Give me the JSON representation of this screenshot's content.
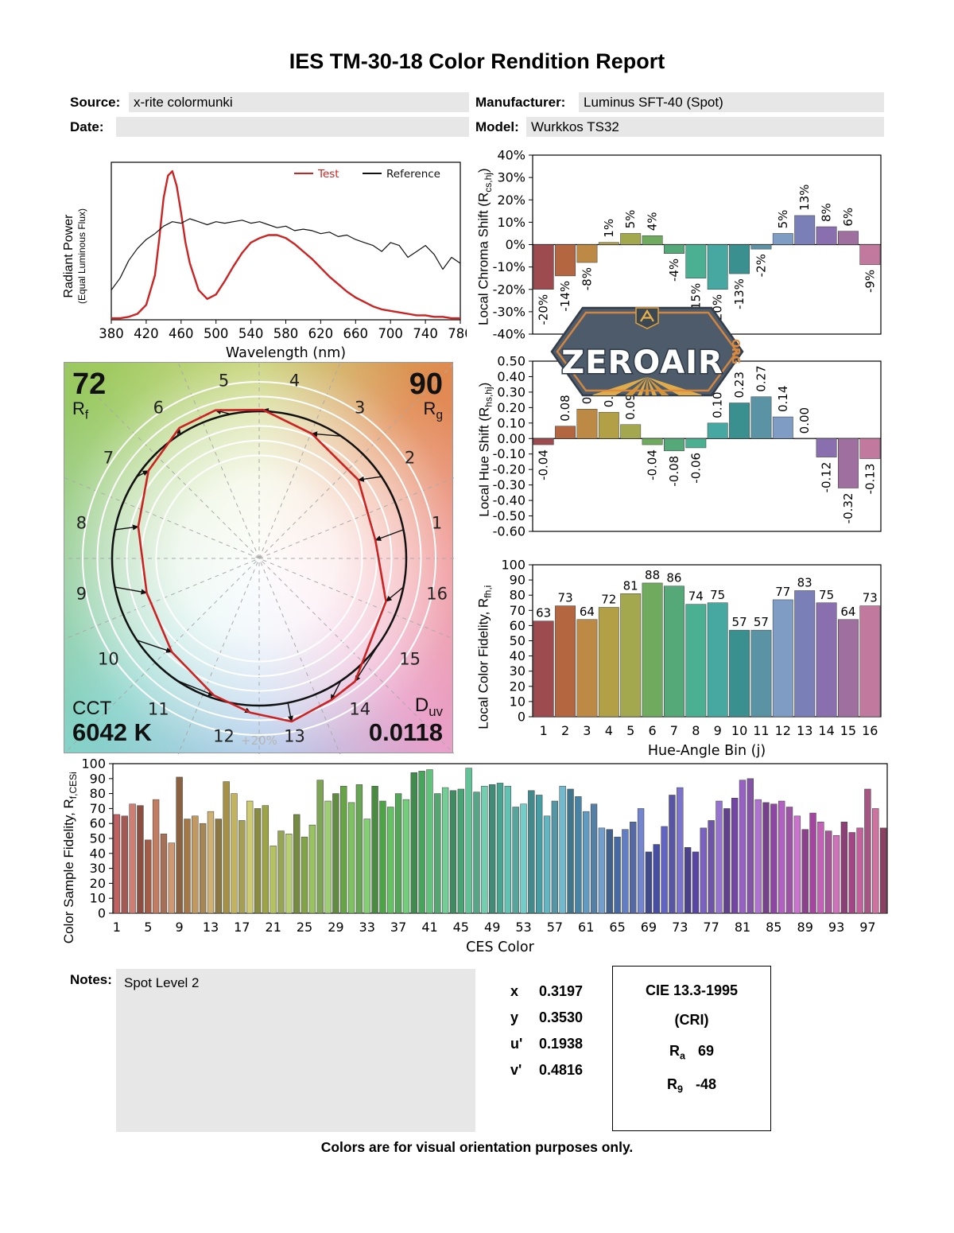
{
  "title": "IES TM-30-18 Color Rendition Report",
  "header": {
    "source_label": "Source:",
    "source_value": "x-rite colormunki",
    "manufacturer_label": "Manufacturer:",
    "manufacturer_value": "Luminus SFT-40 (Spot)",
    "date_label": "Date:",
    "date_value": "",
    "model_label": "Model:",
    "model_value": "Wurkkos TS32"
  },
  "watermark": {
    "text": "ZEROAIR",
    "suffix": "ORG",
    "body_color": "#4e5b6a",
    "accent_color": "#e08a3c",
    "ray_color": "#e8b14a"
  },
  "notes": {
    "label": "Notes:",
    "value": "Spot Level 2"
  },
  "chromaticity": {
    "rows": [
      {
        "label": "x",
        "value": "0.3197"
      },
      {
        "label": "y",
        "value": "0.3530"
      },
      {
        "label": "u'",
        "value": "0.1938"
      },
      {
        "label": "v'",
        "value": "0.4816"
      }
    ]
  },
  "cie": {
    "title": "CIE 13.3-1995",
    "subtitle": "(CRI)",
    "ra_label": "R",
    "ra_sub": "a",
    "ra_value": "69",
    "r9_label": "R",
    "r9_sub": "9",
    "r9_value": "-48"
  },
  "footer": "Colors are for visual orientation purposes only.",
  "bin_colors": [
    "#9e4b50",
    "#b3663f",
    "#bc8a45",
    "#b2a046",
    "#a3a84e",
    "#6faa5e",
    "#55a878",
    "#4bb092",
    "#46a8a0",
    "#3a8f8f",
    "#5a93a3",
    "#7f9cc4",
    "#7b7fb8",
    "#8a6fae",
    "#9f6f9f",
    "#c17a9e"
  ],
  "chart_data": [
    {
      "id": "spd",
      "type": "line",
      "xlabel": "Wavelength (nm)",
      "ylabel": "Radiant Power",
      "ylabel2": "(Equal Luminous Flux)",
      "xlim": [
        380,
        780
      ],
      "xticks": [
        380,
        420,
        460,
        500,
        540,
        580,
        620,
        660,
        700,
        740,
        780
      ],
      "legend": [
        {
          "label": "Test",
          "color": "#cc2222",
          "text_color": "#cc2222"
        },
        {
          "label": "Reference",
          "color": "#111111",
          "text_color": "#111111"
        }
      ],
      "series": [
        {
          "name": "Test",
          "color": "#cc2222",
          "width": 2.4,
          "x": [
            380,
            390,
            400,
            410,
            420,
            430,
            435,
            440,
            445,
            450,
            455,
            460,
            465,
            470,
            480,
            490,
            500,
            510,
            520,
            530,
            540,
            550,
            560,
            570,
            580,
            590,
            600,
            610,
            620,
            630,
            640,
            650,
            660,
            670,
            680,
            690,
            700,
            710,
            720,
            730,
            740,
            750,
            760,
            770,
            780
          ],
          "y": [
            0.01,
            0.01,
            0.02,
            0.04,
            0.1,
            0.3,
            0.55,
            0.82,
            0.97,
            1.0,
            0.9,
            0.72,
            0.52,
            0.38,
            0.2,
            0.14,
            0.17,
            0.26,
            0.36,
            0.45,
            0.52,
            0.55,
            0.57,
            0.57,
            0.55,
            0.51,
            0.46,
            0.41,
            0.35,
            0.29,
            0.24,
            0.19,
            0.15,
            0.12,
            0.09,
            0.07,
            0.06,
            0.05,
            0.04,
            0.03,
            0.03,
            0.02,
            0.02,
            0.01,
            0.01
          ]
        },
        {
          "name": "Reference",
          "color": "#111111",
          "width": 1.2,
          "x": [
            380,
            390,
            400,
            410,
            420,
            430,
            440,
            450,
            460,
            470,
            480,
            490,
            500,
            510,
            520,
            530,
            540,
            550,
            560,
            570,
            580,
            590,
            600,
            610,
            620,
            630,
            640,
            650,
            660,
            670,
            680,
            690,
            700,
            710,
            720,
            730,
            740,
            750,
            760,
            770,
            780
          ],
          "y": [
            0.2,
            0.28,
            0.4,
            0.48,
            0.54,
            0.58,
            0.63,
            0.66,
            0.65,
            0.68,
            0.66,
            0.64,
            0.66,
            0.65,
            0.66,
            0.67,
            0.65,
            0.66,
            0.64,
            0.62,
            0.63,
            0.6,
            0.61,
            0.6,
            0.58,
            0.59,
            0.56,
            0.57,
            0.54,
            0.52,
            0.5,
            0.46,
            0.52,
            0.5,
            0.42,
            0.46,
            0.5,
            0.44,
            0.34,
            0.42,
            0.38
          ]
        }
      ]
    },
    {
      "id": "local_chroma_shift",
      "type": "bar",
      "ylabel_pre": "Local Chroma Shift (R",
      "ylabel_sub": "cs,hj",
      "ylabel_post": ")",
      "ylim": [
        -40,
        40
      ],
      "ytick_step": 10,
      "categories": [
        1,
        2,
        3,
        4,
        5,
        6,
        7,
        8,
        9,
        10,
        11,
        12,
        13,
        14,
        15,
        16
      ],
      "values": [
        -20,
        -14,
        -8,
        1,
        5,
        4,
        -4,
        -15,
        -20,
        -13,
        -2,
        5,
        13,
        8,
        6,
        -9
      ],
      "bar_labels": [
        "-20%",
        "-14%",
        "-8%",
        "1%",
        "5%",
        "4%",
        "-4%",
        "-15%",
        "-20%",
        "-13%",
        "-2%",
        "5%",
        "13%",
        "8%",
        "6%",
        "-9%"
      ]
    },
    {
      "id": "local_hue_shift",
      "type": "bar",
      "ylabel_pre": "Local Hue Shift (R",
      "ylabel_sub": "hs,hj",
      "ylabel_post": ")",
      "ylim": [
        -0.6,
        0.5
      ],
      "ytick_step": 0.1,
      "categories": [
        1,
        2,
        3,
        4,
        5,
        6,
        7,
        8,
        9,
        10,
        11,
        12,
        13,
        14,
        15,
        16
      ],
      "values": [
        -0.04,
        0.08,
        0.19,
        0.17,
        0.09,
        -0.04,
        -0.08,
        -0.06,
        0.1,
        0.23,
        0.27,
        0.14,
        0.0,
        -0.12,
        -0.32,
        -0.13
      ],
      "bar_labels": [
        "-0.04",
        "0.08",
        "0.19",
        "0.17",
        "0.09",
        "-0.04",
        "-0.08",
        "-0.06",
        "0.10",
        "0.23",
        "0.27",
        "0.14",
        "0.00",
        "-0.12",
        "-0.32",
        "-0.13"
      ]
    },
    {
      "id": "local_color_fidelity",
      "type": "bar",
      "ylabel_pre": "Local Color Fidelity, R",
      "ylabel_sub": "fh,i",
      "ylabel_post": "",
      "xlabel": "Hue-Angle Bin (j)",
      "ylim": [
        0,
        100
      ],
      "ytick_step": 10,
      "categories": [
        1,
        2,
        3,
        4,
        5,
        6,
        7,
        8,
        9,
        10,
        11,
        12,
        13,
        14,
        15,
        16
      ],
      "values": [
        63,
        73,
        64,
        72,
        81,
        88,
        86,
        74,
        75,
        57,
        57,
        77,
        83,
        75,
        64,
        73
      ],
      "bar_labels": [
        "63",
        "73",
        "64",
        "72",
        "81",
        "88",
        "86",
        "74",
        "75",
        "57",
        "57",
        "77",
        "83",
        "75",
        "64",
        "73"
      ]
    },
    {
      "id": "color_sample_fidelity",
      "type": "bar",
      "ylabel_pre": "Color Sample Fidelity, R",
      "ylabel_sub": "f,CESi",
      "ylabel_post": "",
      "xlabel": "CES Color",
      "ylim": [
        0,
        100
      ],
      "ytick_step": 10,
      "n_samples": 99,
      "xticks": [
        1,
        5,
        9,
        13,
        17,
        21,
        25,
        29,
        33,
        37,
        41,
        45,
        49,
        53,
        57,
        61,
        65,
        69,
        73,
        77,
        81,
        85,
        89,
        93,
        97
      ],
      "values": [
        66,
        65,
        73,
        72,
        49,
        76,
        53,
        47,
        91,
        63,
        65,
        60,
        68,
        63,
        88,
        80,
        62,
        75,
        70,
        72,
        45,
        55,
        53,
        66,
        51,
        59,
        89,
        75,
        80,
        85,
        74,
        86,
        63,
        85,
        75,
        71,
        80,
        76,
        94,
        95,
        96,
        80,
        84,
        82,
        83,
        97,
        81,
        85,
        86,
        87,
        85,
        71,
        73,
        82,
        79,
        65,
        75,
        85,
        83,
        78,
        68,
        73,
        57,
        56,
        51,
        56,
        61,
        70,
        41,
        46,
        58,
        79,
        84,
        44,
        41,
        57,
        62,
        75,
        70,
        77,
        89,
        90,
        76,
        74,
        73,
        75,
        71,
        65,
        56,
        67,
        61,
        55,
        52,
        61,
        54,
        57,
        83,
        70,
        57
      ]
    },
    {
      "id": "color_vector_graphic",
      "type": "radar",
      "rf": "72",
      "rf_label": "R",
      "rf_sub": "f",
      "rg": "90",
      "rg_label": "R",
      "rg_sub": "g",
      "cct_label": "CCT",
      "cct_value": "6042 K",
      "duv_label": "D",
      "duv_sub": "uv",
      "duv_value": "0.0118",
      "ring_label": "+20%",
      "bins": [
        1,
        2,
        3,
        4,
        5,
        6,
        7,
        8,
        9,
        10,
        11,
        12,
        13,
        14,
        15,
        16
      ]
    }
  ]
}
